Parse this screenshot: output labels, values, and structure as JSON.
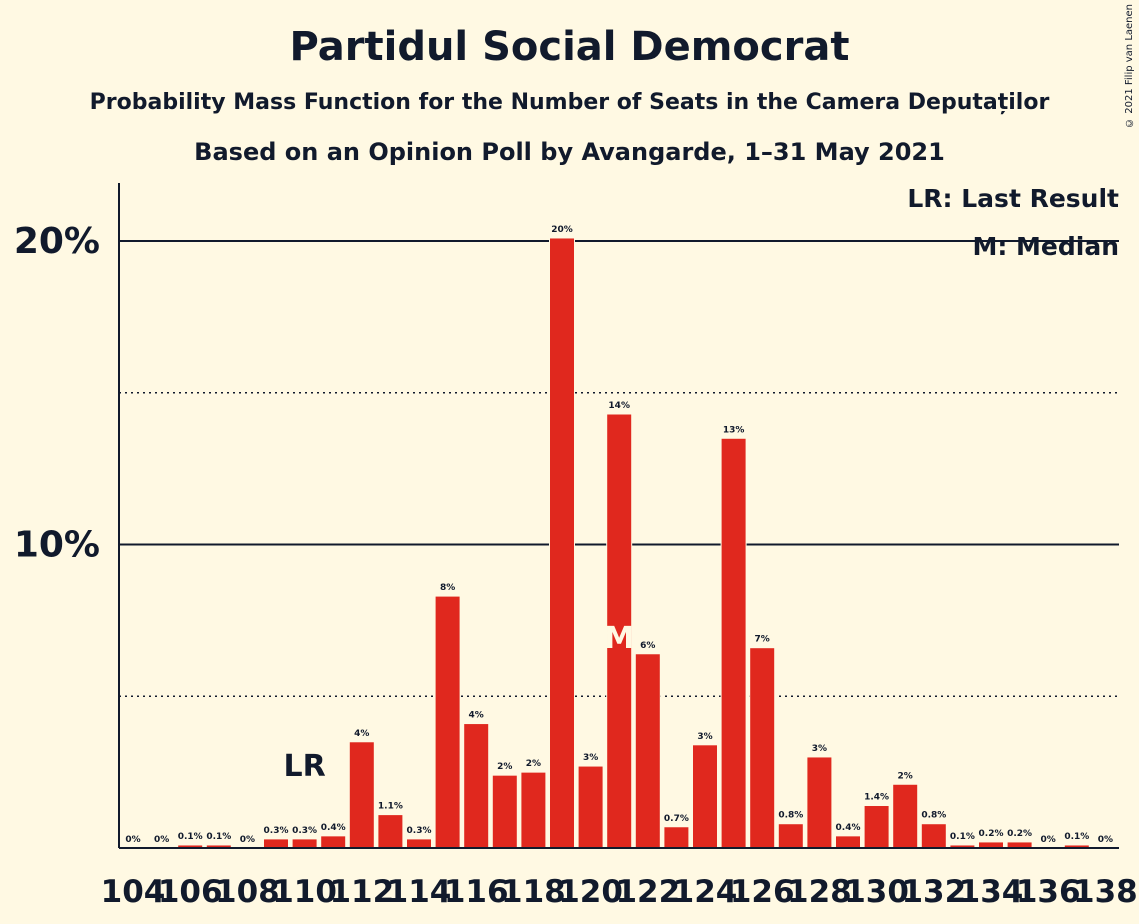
{
  "chart_data": {
    "type": "bar",
    "title": "Partidul Social Democrat",
    "subtitle": "Probability Mass Function for the Number of Seats in the Camera Deputaților",
    "subtitle2": "Based on an Opinion Poll by Avangarde, 1–31 May 2021",
    "copyright": "© 2021 Filip van Laenen",
    "legend": [
      "LR: Last Result",
      "M: Median"
    ],
    "legend_position": "top-right",
    "ylim": [
      0,
      22
    ],
    "y_ticks": [
      {
        "value": 10,
        "label": "10%"
      },
      {
        "value": 20,
        "label": "20%"
      }
    ],
    "dotted_gridlines": [
      5,
      15
    ],
    "x_tick_labels": [
      "104",
      "106",
      "108",
      "110",
      "112",
      "114",
      "116",
      "118",
      "120",
      "122",
      "124",
      "126",
      "128",
      "130",
      "132",
      "134",
      "136",
      "138"
    ],
    "categories": [
      104,
      105,
      106,
      107,
      108,
      109,
      110,
      111,
      112,
      113,
      114,
      115,
      116,
      117,
      118,
      119,
      120,
      121,
      122,
      123,
      124,
      125,
      126,
      127,
      128,
      129,
      130,
      131,
      132,
      133,
      134,
      135,
      136,
      137,
      138
    ],
    "values": [
      0,
      0,
      0.1,
      0.1,
      0,
      0.3,
      0.3,
      0.4,
      3.5,
      1.1,
      0.3,
      8.3,
      4.1,
      2.4,
      2.5,
      20.1,
      2.7,
      14.3,
      6.4,
      0.7,
      3.4,
      13.5,
      6.6,
      0.8,
      3.0,
      0.4,
      1.4,
      2.1,
      0.8,
      0.1,
      0.2,
      0.2,
      0,
      0.1,
      0
    ],
    "value_labels": [
      "0%",
      "0%",
      "0.1%",
      "0.1%",
      "0%",
      "0.3%",
      "0.3%",
      "0.4%",
      "4%",
      "1.1%",
      "0.3%",
      "8%",
      "4%",
      "2%",
      "2%",
      "20%",
      "3%",
      "14%",
      "6%",
      "0.7%",
      "3%",
      "13%",
      "7%",
      "0.8%",
      "3%",
      "0.4%",
      "1.4%",
      "2%",
      "0.8%",
      "0.1%",
      "0.2%",
      "0.2%",
      "0%",
      "0.1%",
      "0%"
    ],
    "last_result": {
      "seat": 110,
      "label": "LR"
    },
    "median": {
      "seat": 121,
      "label": "M"
    },
    "bar_color": "#E0281E",
    "axis_color": "#111a2c",
    "background": "#FFF9E3"
  }
}
